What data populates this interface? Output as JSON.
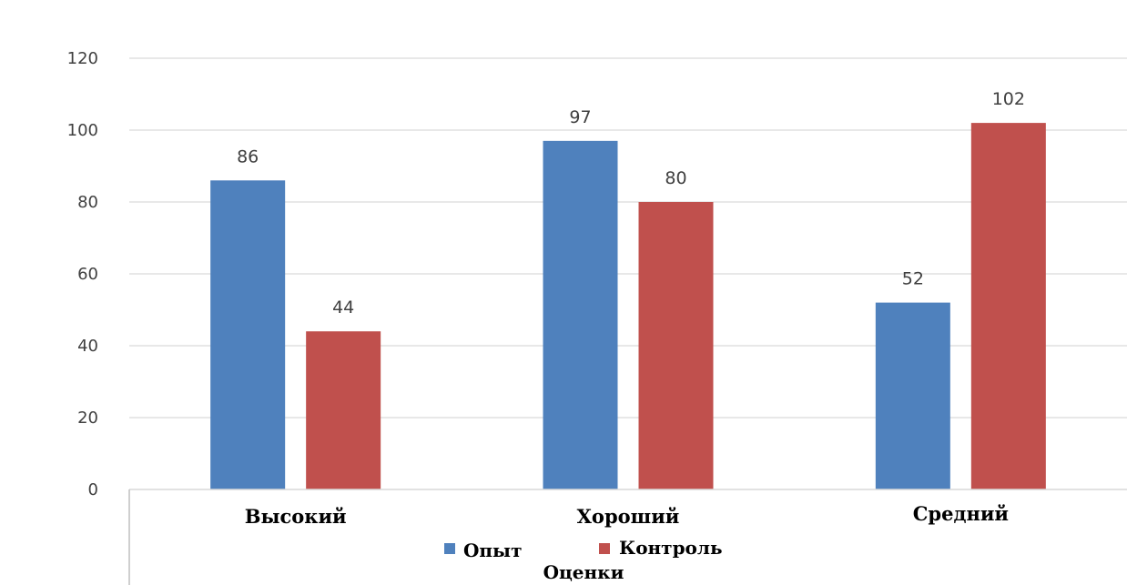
{
  "chart_data": {
    "type": "bar",
    "categories": [
      "Высокий",
      "Хороший",
      "Средний"
    ],
    "series": [
      {
        "name": "Опыт",
        "values": [
          86,
          97,
          52
        ],
        "color": "#4F81BD"
      },
      {
        "name": "Контроль",
        "values": [
          44,
          80,
          102
        ],
        "color": "#C0504D"
      }
    ],
    "title": "",
    "xlabel": "Оценки",
    "ylabel": "",
    "ylim": [
      0,
      120
    ],
    "yticks": [
      0,
      20,
      40,
      60,
      80,
      100,
      120
    ],
    "grid": true,
    "legend_position": "bottom"
  }
}
